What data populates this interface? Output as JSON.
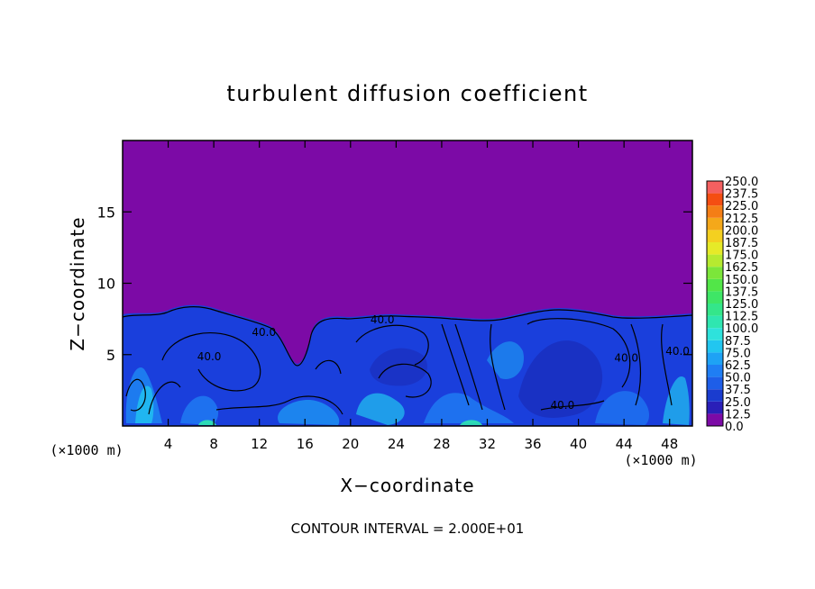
{
  "chart_data": {
    "type": "heatmap",
    "title": "turbulent diffusion coefficient",
    "xlabel": "X−coordinate",
    "ylabel": "Z−coordinate",
    "x_unit_left": "(×1000 m)",
    "x_unit_right": "(×1000 m)",
    "footer": "CONTOUR INTERVAL = 2.000E+01",
    "xlim": [
      0,
      50
    ],
    "ylim": [
      0,
      20
    ],
    "x_ticks": [
      4,
      8,
      12,
      16,
      20,
      24,
      28,
      32,
      36,
      40,
      44,
      48
    ],
    "y_ticks": [
      5,
      10,
      15
    ],
    "contour_labels": [
      {
        "text": "40.0",
        "x": 7.6,
        "z": 4.6
      },
      {
        "text": "40.0",
        "x": 12.4,
        "z": 6.3
      },
      {
        "text": "40.0",
        "x": 22.8,
        "z": 7.2
      },
      {
        "text": "40.0",
        "x": 38.6,
        "z": 1.2
      },
      {
        "text": "40.0",
        "x": 44.2,
        "z": 4.5
      },
      {
        "text": "40.0",
        "x": 48.7,
        "z": 5.0
      }
    ],
    "colorbar": {
      "levels": [
        "0.0",
        "12.5",
        "25.0",
        "37.5",
        "50.0",
        "62.5",
        "75.0",
        "87.5",
        "100.0",
        "112.5",
        "125.0",
        "137.5",
        "150.0",
        "162.5",
        "175.0",
        "187.5",
        "200.0",
        "212.5",
        "225.0",
        "237.5",
        "250.0"
      ],
      "colors": [
        "#7c0aa6",
        "#2a1fb8",
        "#1a3ccf",
        "#1e5ee8",
        "#1f7ef4",
        "#1ea2f5",
        "#22c6f0",
        "#2ee2dc",
        "#2fe6b0",
        "#34e68a",
        "#3ee666",
        "#52e648",
        "#7ce63a",
        "#b6ea30",
        "#e6ea28",
        "#f4d020",
        "#f4a81a",
        "#f47e16",
        "#f44e12",
        "#f46060"
      ],
      "range": [
        0,
        250
      ]
    },
    "colors": {
      "background_field": "#7c0aa6",
      "turbulent_layer": "#1a3fdc",
      "contour": "#000000"
    }
  }
}
